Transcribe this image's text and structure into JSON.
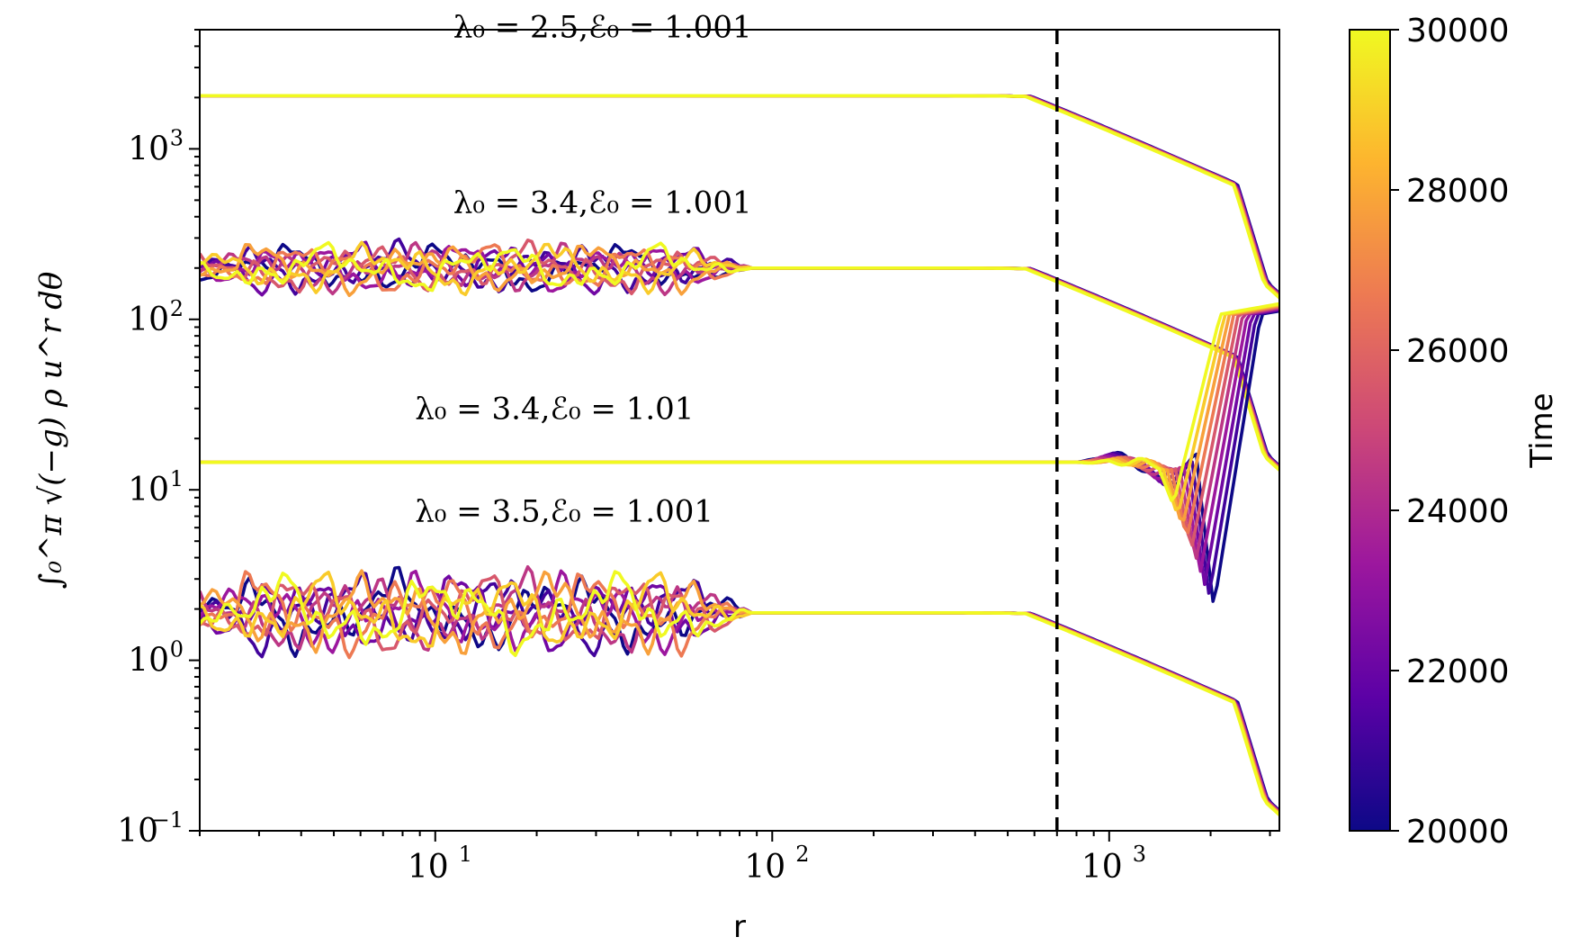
{
  "chart_data": {
    "type": "line",
    "xscale": "log",
    "yscale": "log",
    "xlim": [
      2.0,
      3200
    ],
    "ylim": [
      0.1,
      5000
    ],
    "xlabel": "r",
    "ylabel": "∫₀^π √(−g) ρ u^r dθ",
    "xticks": [
      {
        "value": 10,
        "base": "10",
        "exp": "1"
      },
      {
        "value": 100,
        "base": "10",
        "exp": "2"
      },
      {
        "value": 1000,
        "base": "10",
        "exp": "3"
      }
    ],
    "yticks": [
      {
        "value": 0.1,
        "base": "10",
        "exp": "−1"
      },
      {
        "value": 1,
        "base": "10",
        "exp": "0"
      },
      {
        "value": 10,
        "base": "10",
        "exp": "1"
      },
      {
        "value": 100,
        "base": "10",
        "exp": "2"
      },
      {
        "value": 1000,
        "base": "10",
        "exp": "3"
      }
    ],
    "vline": {
      "x": 700,
      "style": "dashed",
      "color": "#000000"
    },
    "colorbar": {
      "label": "Time",
      "colormap": "plasma",
      "min": 20000,
      "max": 30000,
      "ticks": [
        "20000",
        "22000",
        "24000",
        "26000",
        "28000",
        "30000"
      ],
      "stops": [
        "#0d0887",
        "#5c01a6",
        "#9c179e",
        "#cc4778",
        "#ed7953",
        "#fdb42f",
        "#f0f921"
      ]
    },
    "n_snapshots": 10,
    "series_groups": [
      {
        "name": "λ0 = 2.5, E0 = 1.001",
        "label": "λ₀ = 2.5,ℰ₀ = 1.001",
        "label_pos": [
          10,
          4500
        ],
        "plateau": 2050,
        "shape": "smooth_drop",
        "noise": 0
      },
      {
        "name": "λ0 = 3.4, E0 = 1.001",
        "label": "λ₀ = 3.4,ℰ₀ = 1.001",
        "label_pos": [
          10,
          420
        ],
        "plateau": 200,
        "shape": "smooth_drop",
        "noise": 0.16
      },
      {
        "name": "λ0 = 3.4, E0 = 1.01",
        "label": "λ₀ = 3.4,ℰ₀ = 1.01",
        "label_pos": [
          7.7,
          26
        ],
        "plateau": 14.5,
        "shape": "shock_rise",
        "noise": 0
      },
      {
        "name": "λ0 = 3.5, E0 = 1.001",
        "label": "λ₀ = 3.5,ℰ₀ = 1.001",
        "label_pos": [
          7.7,
          6.5
        ],
        "plateau": 1.9,
        "shape": "smooth_drop",
        "noise": 0.26
      }
    ]
  }
}
